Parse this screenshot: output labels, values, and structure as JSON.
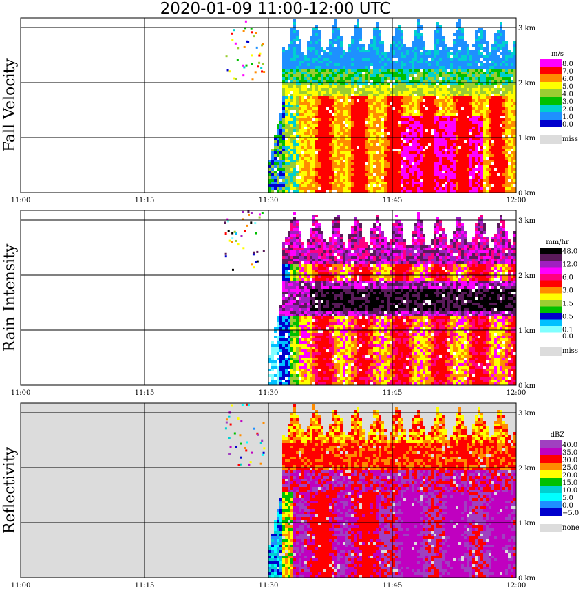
{
  "title": "2020-01-09   11:00-12:00 UTC",
  "chart_data": [
    {
      "type": "heatmap",
      "ylabel": "Fall Velocity",
      "unit": "m/s",
      "colorbar": [
        {
          "label": "8.0",
          "color": "#ff00ff"
        },
        {
          "label": "7.0",
          "color": "#ff0000"
        },
        {
          "label": "6.0",
          "color": "#ff8c00"
        },
        {
          "label": "5.0",
          "color": "#ffff00"
        },
        {
          "label": "4.0",
          "color": "#9acd32"
        },
        {
          "label": "3.0",
          "color": "#00c000"
        },
        {
          "label": "2.0",
          "color": "#00d0d0"
        },
        {
          "label": "1.0",
          "color": "#1e90ff"
        },
        {
          "label": "0.0",
          "color": "#0000cd"
        }
      ],
      "miss_label": "miss",
      "x_ticks": [
        "11:00",
        "11:15",
        "11:30",
        "11:45",
        "12:00"
      ],
      "y_ticks": [
        "3 km",
        "2 km",
        "1 km",
        "0 km"
      ]
    },
    {
      "type": "heatmap",
      "ylabel": "Rain Intensity",
      "unit": "mm/hr",
      "colorbar": [
        {
          "label": "48.0",
          "color": "#000000"
        },
        {
          "label": "",
          "color": "#5a1a5a"
        },
        {
          "label": "12.0",
          "color": "#a020c0"
        },
        {
          "label": "",
          "color": "#ff00ff"
        },
        {
          "label": "6.0",
          "color": "#ff0080"
        },
        {
          "label": "",
          "color": "#ff0000"
        },
        {
          "label": "3.0",
          "color": "#ff8c00"
        },
        {
          "label": "",
          "color": "#ffff00"
        },
        {
          "label": "1.5",
          "color": "#9acd32"
        },
        {
          "label": "",
          "color": "#00c000"
        },
        {
          "label": "0.5",
          "color": "#0000cd"
        },
        {
          "label": "",
          "color": "#00c0ff"
        },
        {
          "label": "0.1",
          "color": "#80ffff"
        },
        {
          "label": "0.0",
          "color": "#ffffff"
        }
      ],
      "miss_label": "miss",
      "x_ticks": [
        "11:00",
        "11:15",
        "11:30",
        "11:45",
        "12:00"
      ],
      "y_ticks": [
        "3 km",
        "2 km",
        "1 km",
        "0 km"
      ]
    },
    {
      "type": "heatmap",
      "ylabel": "Reflectivity",
      "unit": "dBZ",
      "colorbar": [
        {
          "label": "40.0",
          "color": "#a040c0"
        },
        {
          "label": "35.0",
          "color": "#c000c0"
        },
        {
          "label": "30.0",
          "color": "#ff0000"
        },
        {
          "label": "25.0",
          "color": "#ff8c00"
        },
        {
          "label": "20.0",
          "color": "#ffff00"
        },
        {
          "label": "15.0",
          "color": "#00c000"
        },
        {
          "label": "10.0",
          "color": "#00d0d0"
        },
        {
          "label": "5.0",
          "color": "#00ffff"
        },
        {
          "label": "0.0",
          "color": "#1e90ff"
        },
        {
          "label": "−5.0",
          "color": "#0000cd"
        }
      ],
      "miss_label": "none",
      "x_ticks": [
        "11:00",
        "11:15",
        "11:30",
        "11:45",
        "12:00"
      ],
      "y_ticks": [
        "3 km",
        "2 km",
        "1 km",
        "0 km"
      ]
    }
  ]
}
